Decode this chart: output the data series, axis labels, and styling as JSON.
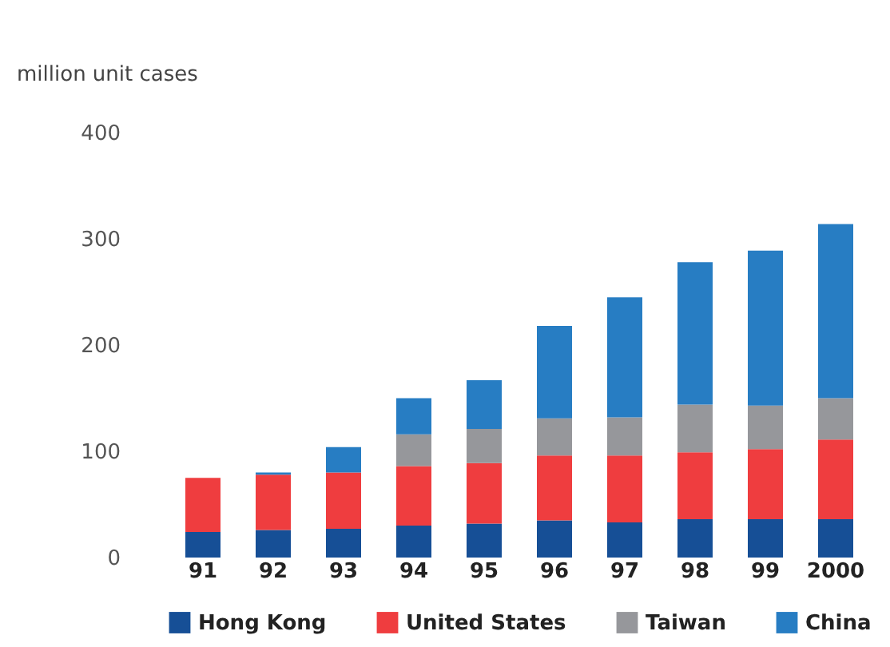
{
  "chart_data": {
    "type": "bar",
    "stacked": true,
    "ylabel": "million unit cases",
    "categories": [
      "91",
      "92",
      "93",
      "94",
      "95",
      "96",
      "97",
      "98",
      "99",
      "2000"
    ],
    "series": [
      {
        "name": "Hong Kong",
        "color": "#164f96",
        "values": [
          24,
          26,
          27,
          30,
          32,
          35,
          33,
          36,
          36,
          36
        ]
      },
      {
        "name": "United States",
        "color": "#ef3d3f",
        "values": [
          51,
          52,
          53,
          56,
          57,
          61,
          63,
          63,
          66,
          75
        ]
      },
      {
        "name": "Taiwan",
        "color": "#96979b",
        "values": [
          0,
          0,
          0,
          30,
          32,
          35,
          36,
          45,
          41,
          39
        ]
      },
      {
        "name": "China",
        "color": "#277dc3",
        "values": [
          0,
          2,
          24,
          34,
          46,
          87,
          113,
          134,
          146,
          164
        ]
      }
    ],
    "ylim": [
      0,
      400
    ],
    "yticks": [
      0,
      100,
      200,
      300,
      400
    ],
    "grid": false,
    "legend": "bottom"
  }
}
